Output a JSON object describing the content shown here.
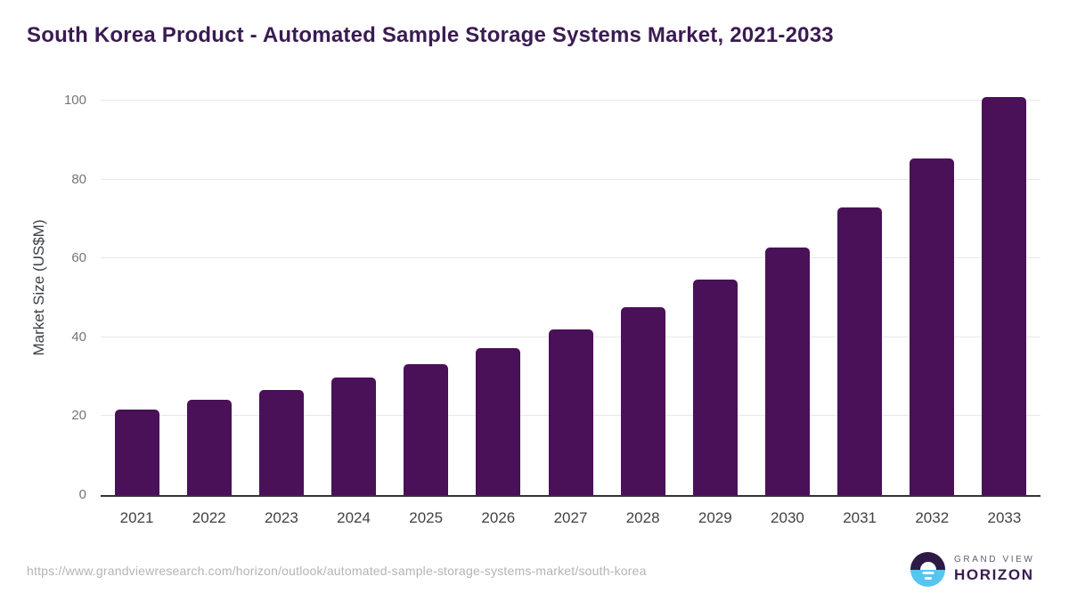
{
  "chart_data": {
    "type": "bar",
    "title": "South Korea Product - Automated Sample Storage Systems Market, 2021-2033",
    "categories": [
      "2021",
      "2022",
      "2023",
      "2024",
      "2025",
      "2026",
      "2027",
      "2028",
      "2029",
      "2030",
      "2031",
      "2032",
      "2033"
    ],
    "values": [
      21.7,
      24.2,
      26.7,
      29.7,
      33.2,
      37.2,
      42.0,
      47.7,
      54.6,
      62.8,
      73.0,
      85.3,
      100.8
    ],
    "xlabel": "",
    "ylabel": "Market Size (US$M)",
    "ylim": [
      0,
      100
    ],
    "yticks": [
      0,
      20,
      40,
      60,
      80,
      100
    ],
    "grid": true,
    "legend": false,
    "bar_color": "#4a1058"
  },
  "footer": {
    "url": "https://www.grandviewresearch.com/horizon/outlook/automated-sample-storage-systems-market/south-korea",
    "logo": {
      "line1": "GRAND VIEW",
      "line2": "HORIZON"
    }
  },
  "colors": {
    "title": "#3a1b52",
    "bar": "#4a1058",
    "gridline": "#e8e8e8",
    "axis_line": "#333333",
    "y_tick_label": "#757575",
    "x_tick_label": "#424242",
    "url_text": "#b4b4b4",
    "logo_dark": "#2e1a47",
    "logo_blue": "#56c5f0"
  }
}
